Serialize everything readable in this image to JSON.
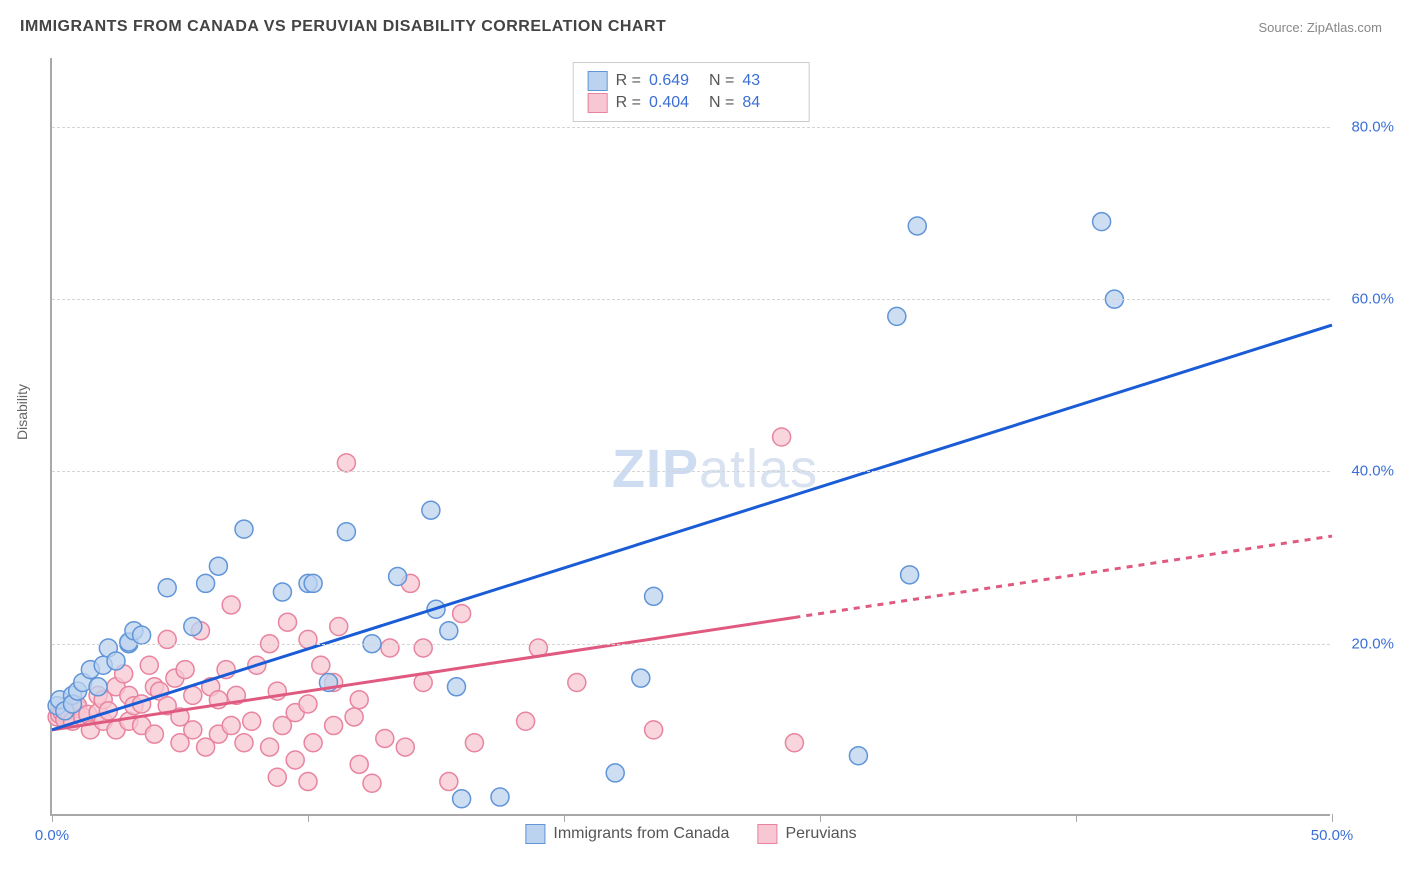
{
  "title": "IMMIGRANTS FROM CANADA VS PERUVIAN DISABILITY CORRELATION CHART",
  "source_prefix": "Source: ",
  "source_name": "ZipAtlas.com",
  "ylabel": "Disability",
  "watermark_bold": "ZIP",
  "watermark_rest": "atlas",
  "chart": {
    "type": "scatter-with-trendlines",
    "background_color": "#ffffff",
    "border_color": "#a8a8a8",
    "grid_color": "#d5d5d5",
    "tick_label_color": "#3b6fd6",
    "xlim": [
      0,
      50
    ],
    "ylim": [
      0,
      88
    ],
    "xticks": [
      0,
      10,
      20,
      30,
      40,
      50
    ],
    "xtick_labels": [
      "0.0%",
      "",
      "",
      "",
      "",
      "50.0%"
    ],
    "yticks": [
      20,
      40,
      60,
      80
    ],
    "ytick_labels": [
      "20.0%",
      "40.0%",
      "60.0%",
      "80.0%"
    ],
    "marker_radius": 9,
    "marker_stroke_width": 1.5,
    "trendline_width": 3,
    "series": [
      {
        "name": "Immigrants from Canada",
        "color_fill": "#bcd3ef",
        "color_stroke": "#6195d8",
        "trend_color": "#1a5cd6",
        "R_label": "R =",
        "R": "0.649",
        "N_label": "N =",
        "N": "43",
        "trendline": {
          "x1": 0,
          "y1": 10,
          "x2": 50,
          "y2": 57,
          "dash_from_x": null
        },
        "points": [
          [
            0.2,
            12.8
          ],
          [
            0.3,
            13.5
          ],
          [
            0.5,
            12.2
          ],
          [
            0.8,
            14.0
          ],
          [
            0.8,
            13.0
          ],
          [
            1.0,
            14.5
          ],
          [
            1.2,
            15.5
          ],
          [
            1.5,
            17.0
          ],
          [
            1.8,
            15.0
          ],
          [
            2.0,
            17.5
          ],
          [
            2.2,
            19.5
          ],
          [
            2.5,
            18.0
          ],
          [
            3.0,
            20.0
          ],
          [
            3.0,
            20.2
          ],
          [
            3.2,
            21.5
          ],
          [
            3.5,
            21.0
          ],
          [
            4.5,
            26.5
          ],
          [
            5.5,
            22.0
          ],
          [
            6.0,
            27.0
          ],
          [
            6.5,
            29.0
          ],
          [
            7.5,
            33.3
          ],
          [
            9.0,
            26.0
          ],
          [
            10.0,
            27.0
          ],
          [
            10.2,
            27.0
          ],
          [
            10.8,
            15.5
          ],
          [
            11.5,
            33.0
          ],
          [
            12.5,
            20.0
          ],
          [
            13.5,
            27.8
          ],
          [
            14.8,
            35.5
          ],
          [
            15.0,
            24.0
          ],
          [
            15.5,
            21.5
          ],
          [
            15.8,
            15.0
          ],
          [
            16.0,
            2.0
          ],
          [
            17.5,
            2.2
          ],
          [
            22.0,
            5.0
          ],
          [
            23.0,
            16.0
          ],
          [
            23.5,
            25.5
          ],
          [
            31.5,
            7.0
          ],
          [
            33.0,
            58.0
          ],
          [
            33.5,
            28.0
          ],
          [
            33.8,
            68.5
          ],
          [
            41.0,
            69.0
          ],
          [
            41.5,
            60.0
          ]
        ]
      },
      {
        "name": "Peruvians",
        "color_fill": "#f7c7d3",
        "color_stroke": "#e884a0",
        "trend_color": "#e05a80",
        "R_label": "R =",
        "R": "0.404",
        "N_label": "N =",
        "N": "84",
        "trendline": {
          "x1": 0,
          "y1": 10,
          "x2": 50,
          "y2": 32.5,
          "dash_from_x": 29
        },
        "points": [
          [
            0.2,
            11.5
          ],
          [
            0.3,
            11.8
          ],
          [
            0.4,
            12.0
          ],
          [
            0.5,
            11.2
          ],
          [
            0.6,
            12.2
          ],
          [
            0.8,
            11.0
          ],
          [
            1.0,
            12.5
          ],
          [
            1.0,
            12.8
          ],
          [
            1.2,
            11.5
          ],
          [
            1.4,
            11.8
          ],
          [
            1.5,
            10.0
          ],
          [
            1.8,
            12.0
          ],
          [
            1.8,
            14.0
          ],
          [
            2.0,
            11.0
          ],
          [
            2.0,
            13.5
          ],
          [
            2.2,
            12.2
          ],
          [
            2.5,
            15.0
          ],
          [
            2.5,
            10.0
          ],
          [
            2.8,
            16.5
          ],
          [
            3.0,
            14.0
          ],
          [
            3.0,
            11.0
          ],
          [
            3.2,
            12.8
          ],
          [
            3.5,
            10.5
          ],
          [
            3.5,
            13.0
          ],
          [
            3.8,
            17.5
          ],
          [
            4.0,
            15.0
          ],
          [
            4.0,
            9.5
          ],
          [
            4.2,
            14.5
          ],
          [
            4.5,
            12.8
          ],
          [
            4.5,
            20.5
          ],
          [
            4.8,
            16.0
          ],
          [
            5.0,
            8.5
          ],
          [
            5.0,
            11.5
          ],
          [
            5.2,
            17.0
          ],
          [
            5.5,
            10.0
          ],
          [
            5.5,
            14.0
          ],
          [
            5.8,
            21.5
          ],
          [
            6.0,
            8.0
          ],
          [
            6.2,
            15.0
          ],
          [
            6.5,
            9.5
          ],
          [
            6.5,
            13.5
          ],
          [
            6.8,
            17.0
          ],
          [
            7.0,
            10.5
          ],
          [
            7.0,
            24.5
          ],
          [
            7.2,
            14.0
          ],
          [
            7.5,
            8.5
          ],
          [
            7.8,
            11.0
          ],
          [
            8.0,
            17.5
          ],
          [
            8.5,
            20.0
          ],
          [
            8.5,
            8.0
          ],
          [
            8.8,
            4.5
          ],
          [
            8.8,
            14.5
          ],
          [
            9.0,
            10.5
          ],
          [
            9.2,
            22.5
          ],
          [
            9.5,
            12.0
          ],
          [
            9.5,
            6.5
          ],
          [
            10.0,
            20.5
          ],
          [
            10.0,
            13.0
          ],
          [
            10.0,
            4.0
          ],
          [
            10.2,
            8.5
          ],
          [
            10.5,
            17.5
          ],
          [
            11.0,
            10.5
          ],
          [
            11.0,
            15.5
          ],
          [
            11.2,
            22.0
          ],
          [
            11.5,
            41.0
          ],
          [
            11.8,
            11.5
          ],
          [
            12.0,
            6.0
          ],
          [
            12.0,
            13.5
          ],
          [
            12.5,
            3.8
          ],
          [
            13.0,
            9.0
          ],
          [
            13.2,
            19.5
          ],
          [
            13.8,
            8.0
          ],
          [
            14.0,
            27.0
          ],
          [
            14.5,
            15.5
          ],
          [
            14.5,
            19.5
          ],
          [
            15.5,
            4.0
          ],
          [
            16.0,
            23.5
          ],
          [
            16.5,
            8.5
          ],
          [
            18.5,
            11.0
          ],
          [
            19.0,
            19.5
          ],
          [
            20.5,
            15.5
          ],
          [
            23.5,
            10.0
          ],
          [
            28.5,
            44.0
          ],
          [
            29.0,
            8.5
          ]
        ]
      }
    ]
  }
}
